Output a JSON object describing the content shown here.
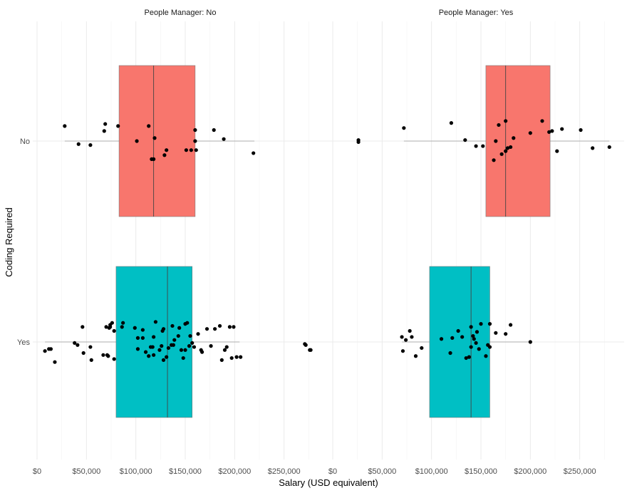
{
  "chart_data": {
    "type": "box",
    "xlabel": "Salary (USD equivalent)",
    "ylabel": "Coding Required",
    "facet_label_prefix": "People Manager: ",
    "x_ticks": [
      "$0",
      "$50,000",
      "$100,000",
      "$150,000",
      "$200,000",
      "$250,000"
    ],
    "x_tick_values": [
      0,
      50000,
      100000,
      150000,
      200000,
      250000
    ],
    "y_categories": [
      "No",
      "Yes"
    ],
    "colors": {
      "No": "#F8766D",
      "Yes": "#00BFC4"
    },
    "grid": true,
    "panels": [
      {
        "facet": "No",
        "xlim": [
          0,
          290000
        ],
        "boxes": [
          {
            "category": "No",
            "q1": 83000,
            "median": 118000,
            "q3": 160000,
            "whisker_low": 28000,
            "whisker_high": 220000,
            "points": [
              [
                28000,
                -0.15
              ],
              [
                42000,
                0.03
              ],
              [
                54000,
                0.04
              ],
              [
                69000,
                -0.17
              ],
              [
                68000,
                -0.1
              ],
              [
                82000,
                -0.15
              ],
              [
                101000,
                0
              ],
              [
                113000,
                -0.15
              ],
              [
                116000,
                0.18
              ],
              [
                118000,
                0.18
              ],
              [
                119000,
                -0.03
              ],
              [
                129000,
                0.14
              ],
              [
                131000,
                0.09
              ],
              [
                151000,
                0.09
              ],
              [
                156000,
                0.09
              ],
              [
                160000,
                0
              ],
              [
                161000,
                0.09
              ],
              [
                160000,
                -0.11
              ],
              [
                179000,
                -0.11
              ],
              [
                189000,
                -0.02
              ],
              [
                219000,
                0.12
              ]
            ]
          },
          {
            "category": "Yes",
            "q1": 80000,
            "median": 132000,
            "q3": 157000,
            "whisker_low": 8000,
            "whisker_high": 205000,
            "points": [
              [
                8000,
                0.09
              ],
              [
                12000,
                0.07
              ],
              [
                14000,
                0.07
              ],
              [
                18000,
                0.2
              ],
              [
                38000,
                0.01
              ],
              [
                41000,
                0.03
              ],
              [
                46000,
                -0.15
              ],
              [
                47000,
                0.11
              ],
              [
                54000,
                0.05
              ],
              [
                55000,
                0.18
              ],
              [
                67000,
                0.13
              ],
              [
                70000,
                -0.15
              ],
              [
                71000,
                0.13
              ],
              [
                72000,
                0.14
              ],
              [
                73000,
                -0.14
              ],
              [
                74000,
                -0.17
              ],
              [
                74000,
                -0.15
              ],
              [
                76000,
                -0.19
              ],
              [
                78000,
                0.17
              ],
              [
                78000,
                -0.11
              ],
              [
                87000,
                -0.19
              ],
              [
                86000,
                -0.15
              ],
              [
                99000,
                -0.14
              ],
              [
                102000,
                -0.04
              ],
              [
                102000,
                0.07
              ],
              [
                107000,
                -0.12
              ],
              [
                107000,
                -0.04
              ],
              [
                110000,
                0.1
              ],
              [
                113000,
                0.14
              ],
              [
                115000,
                0.05
              ],
              [
                117000,
                0.05
              ],
              [
                118000,
                -0.05
              ],
              [
                118000,
                0.13
              ],
              [
                120000,
                -0.2
              ],
              [
                124000,
                0.08
              ],
              [
                126000,
                0.04
              ],
              [
                127000,
                -0.11
              ],
              [
                128000,
                0.18
              ],
              [
                128000,
                -0.13
              ],
              [
                131000,
                0.15
              ],
              [
                133000,
                0.06
              ],
              [
                136000,
                0.03
              ],
              [
                137000,
                -0.16
              ],
              [
                138000,
                0.03
              ],
              [
                139000,
                -0.02
              ],
              [
                143000,
                -0.06
              ],
              [
                144000,
                -0.14
              ],
              [
                146000,
                0.08
              ],
              [
                148000,
                0.16
              ],
              [
                150000,
                0.08
              ],
              [
                150000,
                -0.18
              ],
              [
                152000,
                -0.19
              ],
              [
                154000,
                0.04
              ],
              [
                155000,
                -0.06
              ],
              [
                157000,
                0.01
              ],
              [
                159000,
                0.05
              ],
              [
                163000,
                -0.08
              ],
              [
                166000,
                0.08
              ],
              [
                167000,
                0.1
              ],
              [
                172000,
                -0.13
              ],
              [
                176000,
                0.04
              ],
              [
                180000,
                -0.13
              ],
              [
                185000,
                -0.16
              ],
              [
                187000,
                0.18
              ],
              [
                190000,
                0.08
              ],
              [
                192000,
                0.05
              ],
              [
                195000,
                -0.15
              ],
              [
                197000,
                0.16
              ],
              [
                199000,
                -0.15
              ],
              [
                202000,
                0.15
              ],
              [
                206000,
                0.15
              ],
              [
                271000,
                0.02
              ],
              [
                272000,
                0.03
              ],
              [
                276000,
                0.08
              ],
              [
                277000,
                0.08
              ]
            ]
          }
        ]
      },
      {
        "facet": "Yes",
        "xlim": [
          0,
          290000
        ],
        "boxes": [
          {
            "category": "No",
            "q1": 155000,
            "median": 175000,
            "q3": 220000,
            "whisker_low": 72000,
            "whisker_high": 280000,
            "points": [
              [
                26000,
                -0.01
              ],
              [
                26000,
                0.01
              ],
              [
                72000,
                -0.13
              ],
              [
                120000,
                -0.18
              ],
              [
                134000,
                -0.01
              ],
              [
                145000,
                0.05
              ],
              [
                152000,
                0.05
              ],
              [
                163000,
                0.19
              ],
              [
                165000,
                0
              ],
              [
                168000,
                -0.16
              ],
              [
                171000,
                0.13
              ],
              [
                175000,
                -0.2
              ],
              [
                175000,
                0.1
              ],
              [
                177000,
                0.07
              ],
              [
                180000,
                0.06
              ],
              [
                183000,
                -0.03
              ],
              [
                200000,
                -0.08
              ],
              [
                212000,
                -0.2
              ],
              [
                219000,
                -0.09
              ],
              [
                222000,
                -0.1
              ],
              [
                227000,
                0.1
              ],
              [
                232000,
                -0.12
              ],
              [
                251000,
                -0.11
              ],
              [
                263000,
                0.07
              ],
              [
                280000,
                0.06
              ]
            ]
          },
          {
            "category": "Yes",
            "q1": 98000,
            "median": 140000,
            "q3": 159000,
            "whisker_low": 70000,
            "whisker_high": 200000,
            "points": [
              [
                70000,
                -0.05
              ],
              [
                71000,
                0.09
              ],
              [
                74000,
                -0.02
              ],
              [
                78000,
                -0.11
              ],
              [
                80000,
                -0.05
              ],
              [
                84000,
                0.14
              ],
              [
                90000,
                0.06
              ],
              [
                110000,
                -0.03
              ],
              [
                119000,
                0.11
              ],
              [
                121000,
                -0.04
              ],
              [
                127000,
                -0.11
              ],
              [
                131000,
                -0.05
              ],
              [
                135000,
                0.16
              ],
              [
                138000,
                0.15
              ],
              [
                140000,
                0.05
              ],
              [
                140000,
                -0.15
              ],
              [
                142000,
                -0.06
              ],
              [
                143000,
                -0.03
              ],
              [
                145000,
                0.01
              ],
              [
                146000,
                -0.1
              ],
              [
                148000,
                0.07
              ],
              [
                150000,
                -0.18
              ],
              [
                155000,
                0.14
              ],
              [
                157000,
                0.03
              ],
              [
                159000,
                0.05
              ],
              [
                159000,
                -0.18
              ],
              [
                165000,
                -0.09
              ],
              [
                175000,
                -0.08
              ],
              [
                180000,
                -0.17
              ],
              [
                200000,
                0
              ]
            ]
          }
        ]
      }
    ]
  }
}
